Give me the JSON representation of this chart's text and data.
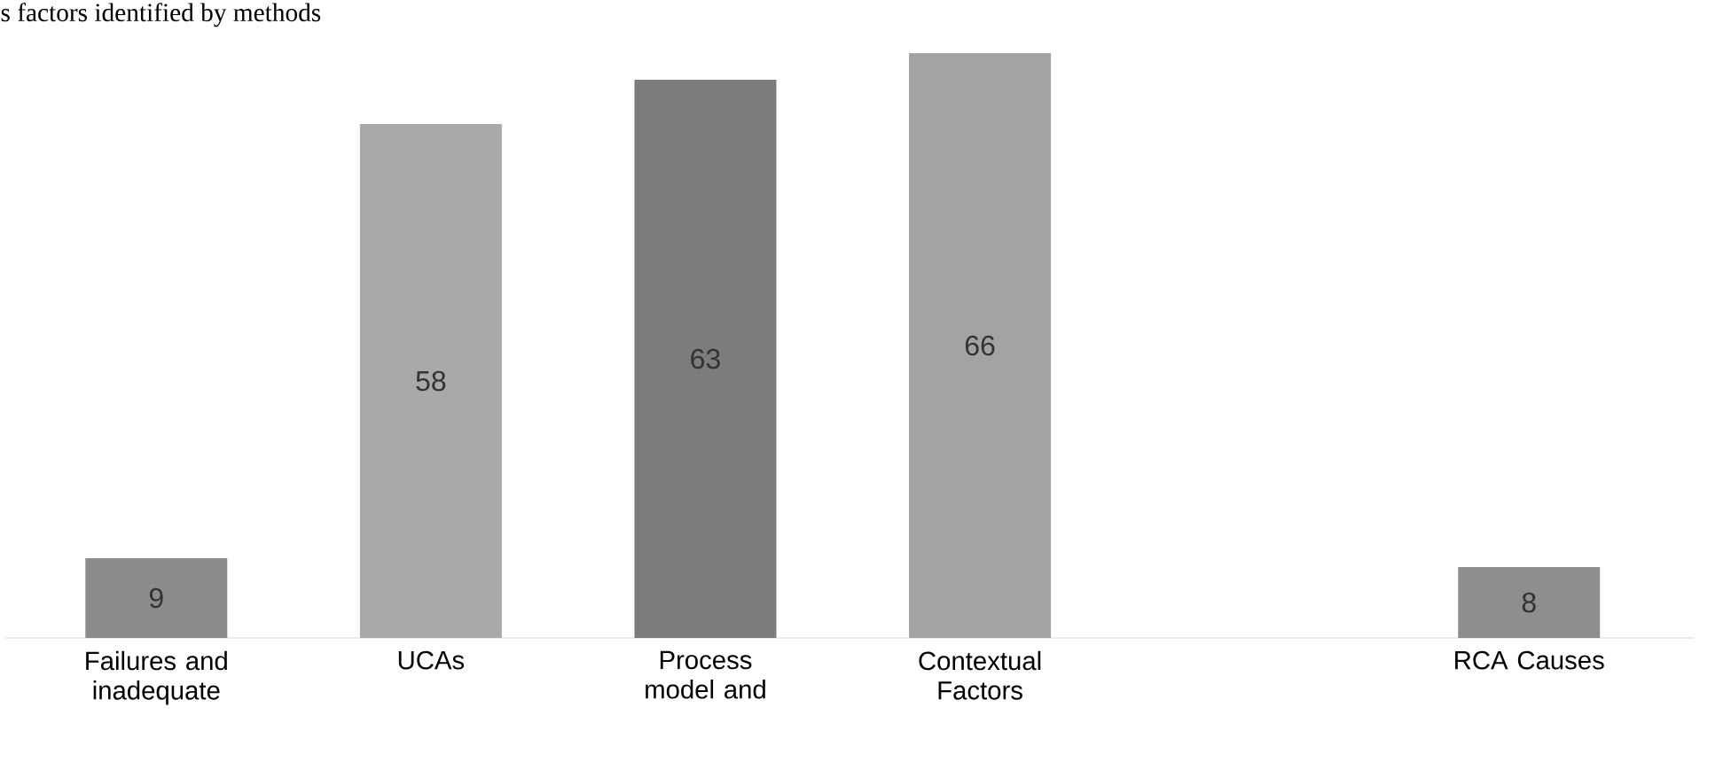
{
  "chart_data": {
    "type": "bar",
    "title": "s factors identified by methods",
    "categories": [
      "Failures and inadequate",
      "UCAs",
      "Process model and",
      "Contextual Factors",
      null,
      "RCA Causes"
    ],
    "values": [
      9,
      58,
      63,
      66,
      null,
      8
    ],
    "colors": [
      "#8c8c8c",
      "#a9a9a9",
      "#7c7c7c",
      "#a3a3a3",
      "#999999",
      "#8e8e8e"
    ],
    "data_labels": true
  }
}
